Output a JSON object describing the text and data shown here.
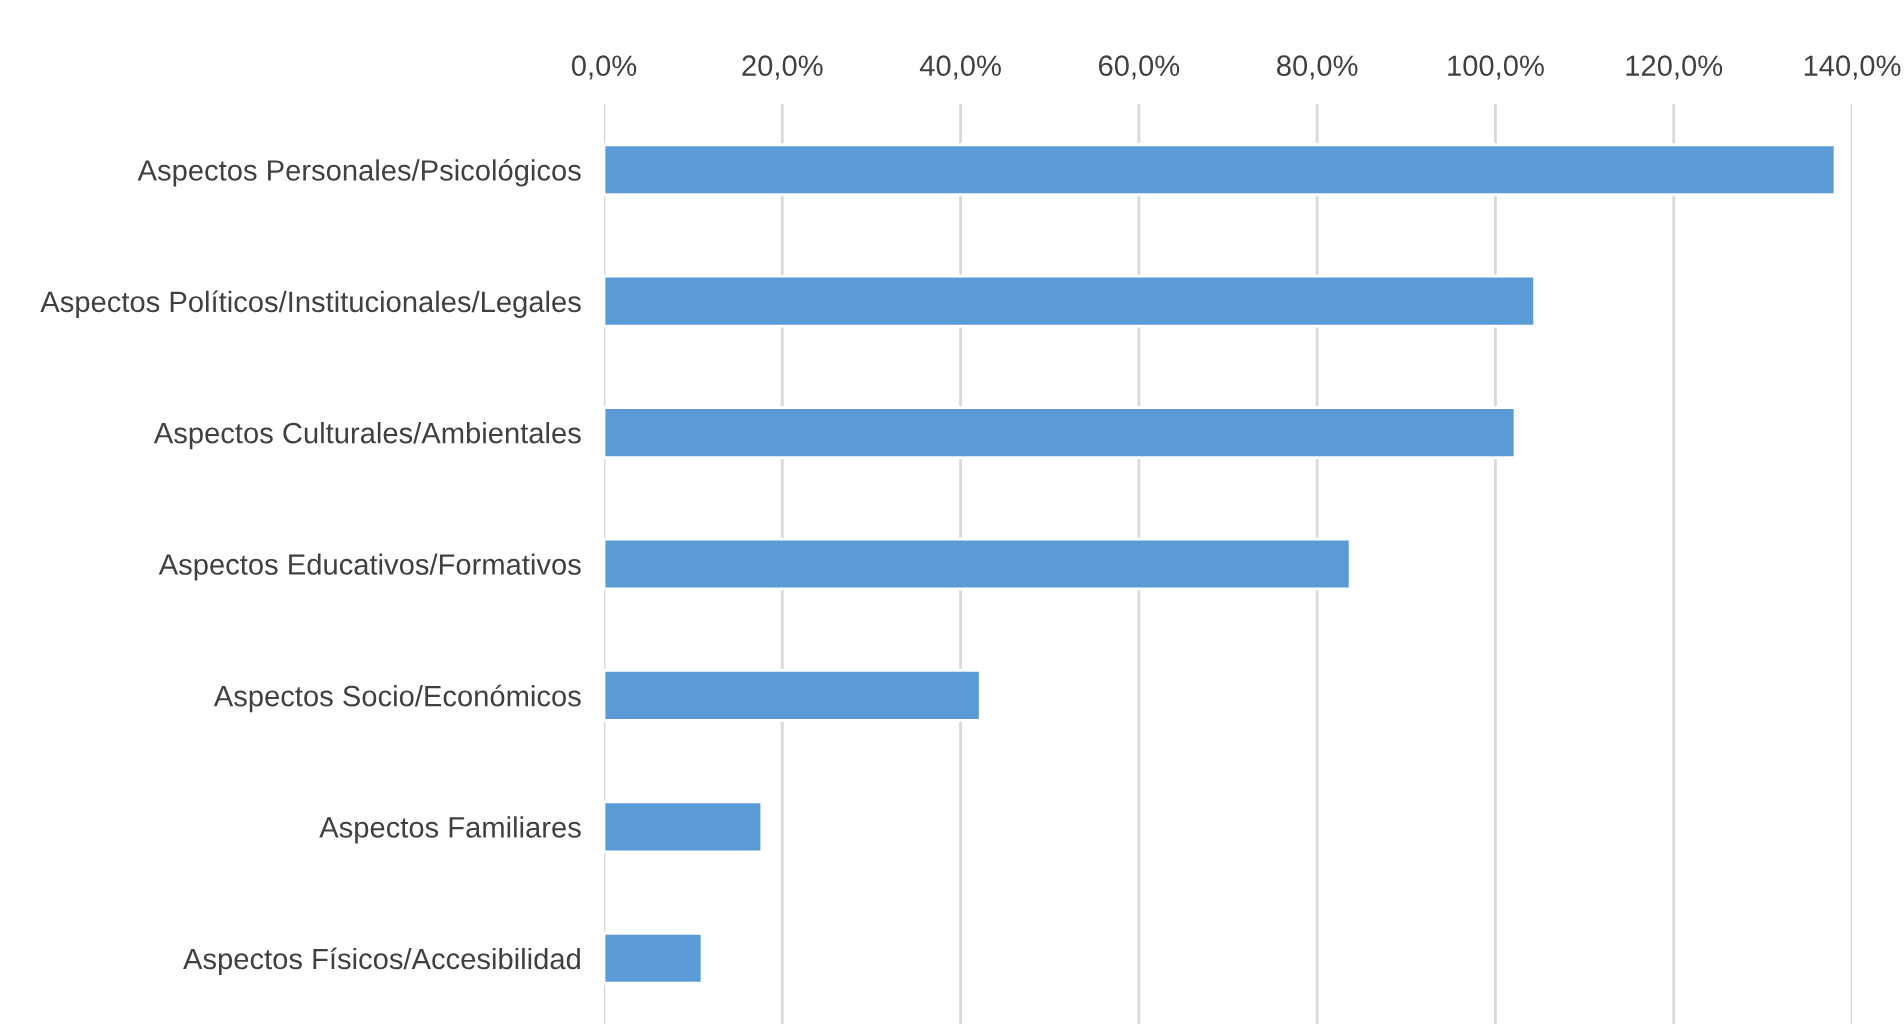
{
  "chart_data": {
    "type": "bar",
    "orientation": "horizontal",
    "categories": [
      "Aspectos Personales/Psicológicos",
      "Aspectos Políticos/Institucionales/Legales",
      "Aspectos Culturales/Ambientales",
      "Aspectos Educativos/Formativos",
      "Aspectos Socio/Económicos",
      "Aspectos Familiares",
      "Aspectos Físicos/Accesibilidad"
    ],
    "values": [
      138.1,
      104.4,
      102.2,
      83.7,
      42.2,
      17.7,
      11.0
    ],
    "color": "#5b9bd5",
    "xlim": [
      0,
      140
    ],
    "xticks": [
      {
        "value": 0,
        "label": "0,0%"
      },
      {
        "value": 20,
        "label": "20,0%"
      },
      {
        "value": 40,
        "label": "40,0%"
      },
      {
        "value": 60,
        "label": "60,0%"
      },
      {
        "value": 80,
        "label": "80,0%"
      },
      {
        "value": 100,
        "label": "100,0%"
      },
      {
        "value": 120,
        "label": "120,0%"
      },
      {
        "value": 140,
        "label": "140,0%"
      }
    ],
    "grid": "x",
    "legend": false
  }
}
